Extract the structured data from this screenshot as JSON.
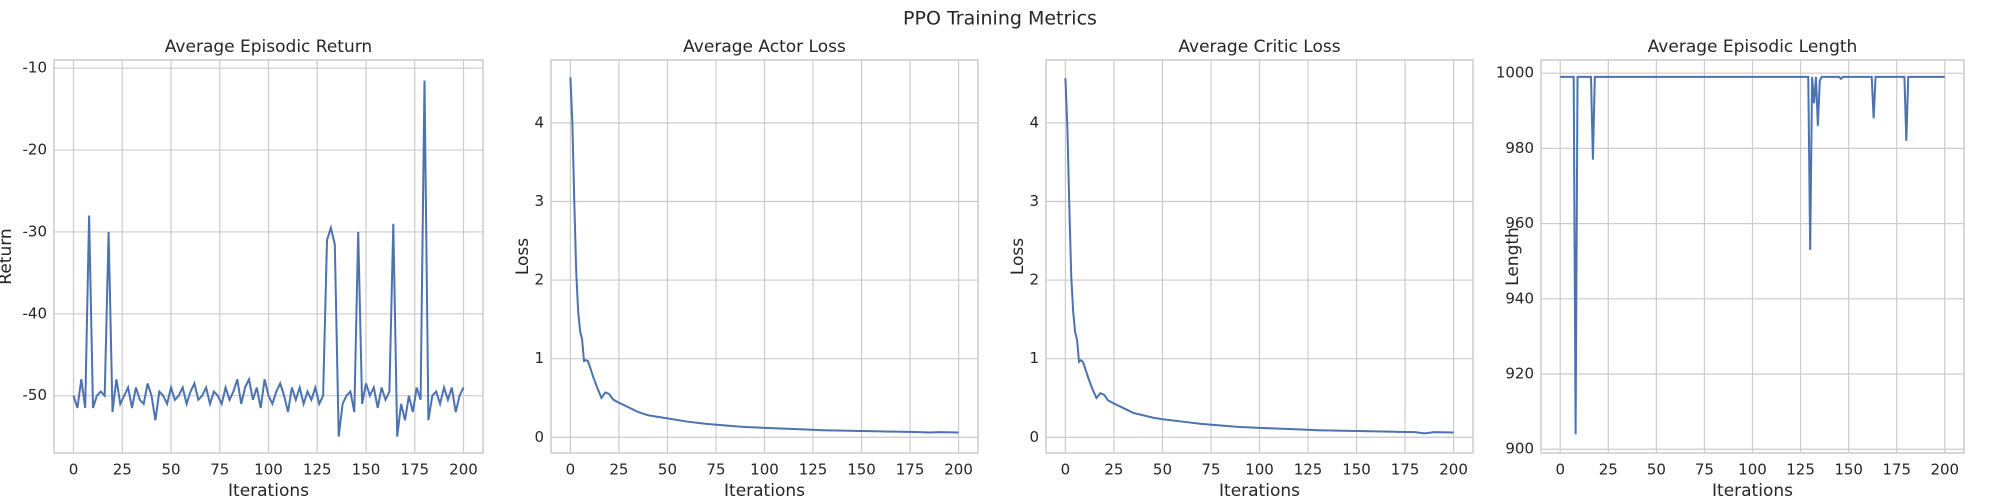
{
  "title": "PPO Training Metrics",
  "chart_data": [
    {
      "type": "line",
      "title": "Average Episodic Return",
      "xlabel": "Iterations",
      "ylabel": "Return",
      "color": "#4c72b0",
      "grid": true,
      "xlim": [
        -10,
        210
      ],
      "xticks": [
        0,
        25,
        50,
        75,
        100,
        125,
        150,
        175,
        200
      ],
      "ylim": [
        -57,
        -9
      ],
      "yticks": [
        -50,
        -40,
        -30,
        -20,
        -10
      ],
      "x": [
        0,
        2,
        4,
        6,
        8,
        10,
        12,
        14,
        16,
        18,
        20,
        22,
        24,
        26,
        28,
        30,
        32,
        34,
        36,
        38,
        40,
        42,
        44,
        46,
        48,
        50,
        52,
        54,
        56,
        58,
        60,
        62,
        64,
        66,
        68,
        70,
        72,
        74,
        76,
        78,
        80,
        82,
        84,
        86,
        88,
        90,
        92,
        94,
        96,
        98,
        100,
        102,
        104,
        106,
        108,
        110,
        112,
        114,
        116,
        118,
        120,
        122,
        124,
        126,
        128,
        130,
        132,
        134,
        136,
        138,
        140,
        142,
        144,
        146,
        148,
        150,
        152,
        154,
        156,
        158,
        160,
        162,
        164,
        166,
        168,
        170,
        172,
        174,
        176,
        178,
        180,
        182,
        184,
        186,
        188,
        190,
        192,
        194,
        196,
        198,
        200
      ],
      "values": [
        -50,
        -51.5,
        -48,
        -51.5,
        -28,
        -51.5,
        -50,
        -49.5,
        -50,
        -30,
        -52,
        -48,
        -51,
        -50,
        -49,
        -51.5,
        -49,
        -50.5,
        -51,
        -48.5,
        -50,
        -53,
        -49.5,
        -50,
        -51,
        -49,
        -50.5,
        -50,
        -49,
        -51,
        -49.5,
        -48.5,
        -50.5,
        -50,
        -49,
        -51,
        -49.5,
        -50,
        -51,
        -49,
        -50.5,
        -49.5,
        -48,
        -51,
        -49,
        -48,
        -50.5,
        -49,
        -51.5,
        -48,
        -50,
        -51,
        -49.5,
        -48.5,
        -50,
        -52,
        -49,
        -50.5,
        -49,
        -51,
        -49.5,
        -50.5,
        -49,
        -51,
        -50,
        -31,
        -29.5,
        -31.5,
        -55,
        -51,
        -50,
        -49.5,
        -52,
        -30,
        -51,
        -48.5,
        -50,
        -49,
        -51.5,
        -49,
        -50.5,
        -49.5,
        -29,
        -55,
        -51,
        -53,
        -50,
        -52,
        -49,
        -50.5,
        -11.5,
        -53,
        -50,
        -49.5,
        -51,
        -49,
        -50.5,
        -49,
        -52,
        -50,
        -49
      ]
    },
    {
      "type": "line",
      "title": "Average Actor Loss",
      "xlabel": "Iterations",
      "ylabel": "Loss",
      "color": "#4c72b0",
      "grid": true,
      "xlim": [
        -10,
        210
      ],
      "xticks": [
        0,
        25,
        50,
        75,
        100,
        125,
        150,
        175,
        200
      ],
      "ylim": [
        -0.2,
        4.8
      ],
      "yticks": [
        0,
        1,
        2,
        3,
        4
      ],
      "x": [
        0,
        1,
        2,
        3,
        4,
        5,
        6,
        7,
        8,
        9,
        10,
        12,
        14,
        16,
        18,
        20,
        22,
        25,
        30,
        35,
        40,
        45,
        50,
        60,
        70,
        80,
        90,
        100,
        110,
        120,
        130,
        140,
        150,
        160,
        170,
        180,
        185,
        190,
        200
      ],
      "values": [
        4.58,
        4.0,
        3.0,
        2.1,
        1.6,
        1.35,
        1.25,
        0.97,
        0.98,
        0.97,
        0.9,
        0.75,
        0.62,
        0.5,
        0.57,
        0.55,
        0.48,
        0.44,
        0.38,
        0.32,
        0.28,
        0.26,
        0.24,
        0.2,
        0.17,
        0.15,
        0.13,
        0.12,
        0.11,
        0.1,
        0.09,
        0.085,
        0.08,
        0.075,
        0.07,
        0.065,
        0.06,
        0.065,
        0.06
      ]
    },
    {
      "type": "line",
      "title": "Average Critic Loss",
      "xlabel": "Iterations",
      "ylabel": "Loss",
      "color": "#4c72b0",
      "grid": true,
      "xlim": [
        -10,
        210
      ],
      "xticks": [
        0,
        25,
        50,
        75,
        100,
        125,
        150,
        175,
        200
      ],
      "ylim": [
        -0.2,
        4.8
      ],
      "yticks": [
        0,
        1,
        2,
        3,
        4
      ],
      "x": [
        0,
        1,
        2,
        3,
        4,
        5,
        6,
        7,
        8,
        9,
        10,
        12,
        14,
        16,
        18,
        20,
        22,
        25,
        30,
        35,
        40,
        45,
        50,
        60,
        70,
        80,
        90,
        100,
        110,
        120,
        130,
        140,
        150,
        160,
        170,
        180,
        185,
        190,
        200
      ],
      "values": [
        4.57,
        3.95,
        2.95,
        2.05,
        1.6,
        1.34,
        1.24,
        0.96,
        0.98,
        0.96,
        0.89,
        0.74,
        0.61,
        0.5,
        0.56,
        0.54,
        0.47,
        0.43,
        0.37,
        0.31,
        0.28,
        0.25,
        0.23,
        0.2,
        0.17,
        0.15,
        0.13,
        0.12,
        0.11,
        0.1,
        0.09,
        0.085,
        0.08,
        0.075,
        0.07,
        0.065,
        0.05,
        0.065,
        0.06
      ]
    },
    {
      "type": "line",
      "title": "Average Episodic Length",
      "xlabel": "Iterations",
      "ylabel": "Length",
      "color": "#4c72b0",
      "grid": true,
      "xlim": [
        -10,
        210
      ],
      "xticks": [
        0,
        25,
        50,
        75,
        100,
        125,
        150,
        175,
        200
      ],
      "ylim": [
        899,
        1003.5
      ],
      "yticks": [
        900,
        920,
        940,
        960,
        980,
        1000
      ],
      "x": [
        0,
        7,
        8,
        9,
        16,
        17,
        18,
        129,
        130,
        131,
        132,
        133,
        134,
        135,
        136,
        145,
        146,
        147,
        162,
        163,
        164,
        179,
        180,
        181,
        200
      ],
      "values": [
        999,
        999,
        904,
        999,
        999,
        977,
        999,
        999,
        953,
        999,
        992,
        999,
        986,
        998,
        999,
        999,
        998.5,
        999,
        999,
        988,
        999,
        999,
        982,
        999,
        999
      ]
    }
  ]
}
